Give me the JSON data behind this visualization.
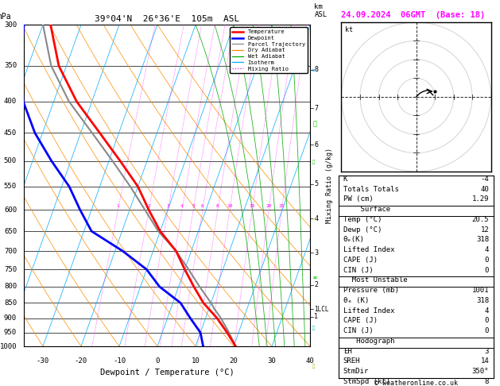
{
  "title_left": "39°04'N  26°36'E  105m  ASL",
  "title_right": "24.09.2024  06GMT  (Base: 18)",
  "xlabel": "Dewpoint / Temperature (°C)",
  "pressure_levels": [
    300,
    350,
    400,
    450,
    500,
    550,
    600,
    650,
    700,
    750,
    800,
    850,
    900,
    950,
    1000
  ],
  "temp_color": "#ff0000",
  "dewp_color": "#0000ff",
  "parcel_color": "#888888",
  "dry_adiabat_color": "#ff8c00",
  "wet_adiabat_color": "#00aa00",
  "isotherm_color": "#00aaff",
  "mixing_ratio_color": "#ff00ff",
  "background_color": "#ffffff",
  "xmin": -35,
  "xmax": 40,
  "pmin": 300,
  "pmax": 1000,
  "skew": 30,
  "km_ticks": [
    8,
    7,
    6,
    5,
    4,
    3,
    2,
    1
  ],
  "km_pressures": [
    355,
    410,
    470,
    545,
    620,
    705,
    795,
    895
  ],
  "lcl_pressure": 870,
  "mixing_ratios": [
    1,
    2,
    3,
    4,
    5,
    6,
    8,
    10,
    15,
    20,
    25
  ],
  "legend_items": [
    "Temperature",
    "Dewpoint",
    "Parcel Trajectory",
    "Dry Adiabat",
    "Wet Adiabat",
    "Isotherm",
    "Mixing Ratio"
  ],
  "legend_colors": [
    "#ff0000",
    "#0000ff",
    "#888888",
    "#ff8c00",
    "#00aa00",
    "#00aaff",
    "#ff00ff"
  ],
  "legend_styles": [
    "solid",
    "solid",
    "solid",
    "solid",
    "solid",
    "solid",
    "dotted"
  ],
  "stats_k": "-4",
  "stats_tt": "40",
  "stats_pw": "1.29",
  "stats_temp": "20.5",
  "stats_dewp": "12",
  "stats_theta_e_s": "318",
  "stats_li_s": "4",
  "stats_cape_s": "0",
  "stats_cin_s": "0",
  "stats_pres_mu": "1001",
  "stats_theta_e_mu": "318",
  "stats_li_mu": "4",
  "stats_cape_mu": "0",
  "stats_cin_mu": "0",
  "stats_eh": "3",
  "stats_sreh": "14",
  "stats_stmdir": "350°",
  "stats_stmspd": "8",
  "temp_pressure": [
    1000,
    950,
    900,
    850,
    800,
    750,
    700,
    650,
    600,
    550,
    500,
    450,
    400,
    350,
    300
  ],
  "temp_values": [
    20.5,
    17,
    13,
    8,
    4,
    0,
    -4,
    -10,
    -15,
    -20,
    -27,
    -35,
    -44,
    -52,
    -58
  ],
  "dewp_pressure": [
    1000,
    950,
    900,
    850,
    800,
    750,
    700,
    650,
    600,
    550,
    500,
    450,
    400,
    350,
    300
  ],
  "dewp_values": [
    12,
    10,
    6,
    2,
    -5,
    -10,
    -18,
    -28,
    -33,
    -38,
    -45,
    -52,
    -58,
    -62,
    -65
  ],
  "parcel_pressure": [
    1000,
    950,
    900,
    870,
    850,
    800,
    750,
    700,
    650,
    600,
    550,
    500,
    450,
    400,
    350,
    300
  ],
  "parcel_values": [
    20.5,
    17.5,
    14,
    11.5,
    10,
    5.5,
    1,
    -4,
    -10.5,
    -16,
    -22,
    -29,
    -37,
    -46,
    -54,
    -60
  ]
}
